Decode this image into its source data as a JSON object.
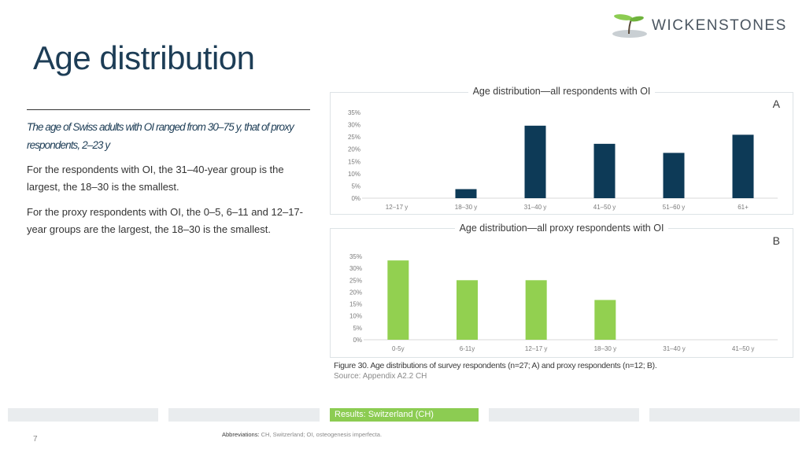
{
  "header": {
    "title": "Age distribution",
    "logo_text": "WICKENSTONES"
  },
  "left": {
    "subtitle": "The age of Swiss adults with OI ranged from 30–75 y, that of proxy respondents, 2–23 y",
    "para1": "For the respondents with OI, the 31–40-year group is the largest, the 18–30 is the smallest.",
    "para2": "For the proxy respondents with OI, the 0–5, 6–11 and 12–17-year groups are the largest, the 18–30 is the smallest."
  },
  "chart_data": [
    {
      "type": "bar",
      "title": "Age distribution—all respondents with OI",
      "panel_label": "A",
      "categories": [
        "12–17 y",
        "18–30 y",
        "31–40 y",
        "41–50 y",
        "51–60 y",
        "61+"
      ],
      "values": [
        0,
        3.7,
        29.6,
        22.2,
        18.5,
        25.9
      ],
      "yticks": [
        "0%",
        "5%",
        "10%",
        "15%",
        "20%",
        "25%",
        "30%",
        "35%"
      ],
      "ylim": [
        0,
        35
      ],
      "color": "#0d3a57"
    },
    {
      "type": "bar",
      "title": "Age distribution—all proxy respondents with OI",
      "panel_label": "B",
      "categories": [
        "0-5y",
        "6-11y",
        "12–17 y",
        "18–30 y",
        "31–40 y",
        "41–50 y"
      ],
      "values": [
        33.3,
        25,
        25,
        16.7,
        0,
        0
      ],
      "yticks": [
        "0%",
        "5%",
        "10%",
        "15%",
        "20%",
        "25%",
        "30%",
        "35%"
      ],
      "ylim": [
        0,
        35
      ],
      "color": "#92d050"
    }
  ],
  "caption": {
    "figure": "Figure 30. Age distributions of survey respondents (n=27; A) and proxy respondents (n=12; B).",
    "source": "Source: Appendix A2.2 CH"
  },
  "footer": {
    "nav_active": "Results: Switzerland (CH)",
    "page_number": "7",
    "abbrev_label": "Abbreviations:",
    "abbrev_text": "CH, Switzerland; OI, osteogenesis imperfecta."
  }
}
